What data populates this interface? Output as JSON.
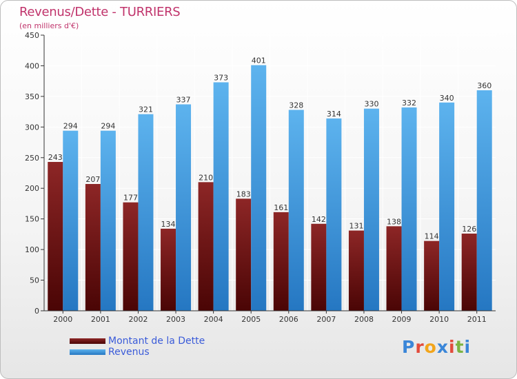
{
  "chart_data": {
    "type": "bar",
    "title": "Revenus/Dette - TURRIERS",
    "subtitle": "(en milliers d'€)",
    "categories": [
      "2000",
      "2001",
      "2002",
      "2003",
      "2004",
      "2005",
      "2006",
      "2007",
      "2008",
      "2009",
      "2010",
      "2011"
    ],
    "series": [
      {
        "name": "Montant de la Dette",
        "color": "#7a1414",
        "values": [
          243,
          207,
          177,
          134,
          210,
          183,
          161,
          142,
          131,
          138,
          114,
          126
        ]
      },
      {
        "name": "Revenus",
        "color": "#4aa3e6",
        "values": [
          294,
          294,
          321,
          337,
          373,
          401,
          328,
          314,
          330,
          332,
          340,
          360
        ]
      }
    ],
    "ylim": [
      0,
      450
    ],
    "yticks": [
      0,
      50,
      100,
      150,
      200,
      250,
      300,
      350,
      400,
      450
    ],
    "grid": true,
    "legend_position": "bottom-left"
  },
  "logo": {
    "text": "Proxiti",
    "colors": [
      "#3a86d8",
      "#e24b3b",
      "#f2a51b",
      "#3a86d8",
      "#e24b3b",
      "#7cb342",
      "#3a86d8"
    ]
  }
}
